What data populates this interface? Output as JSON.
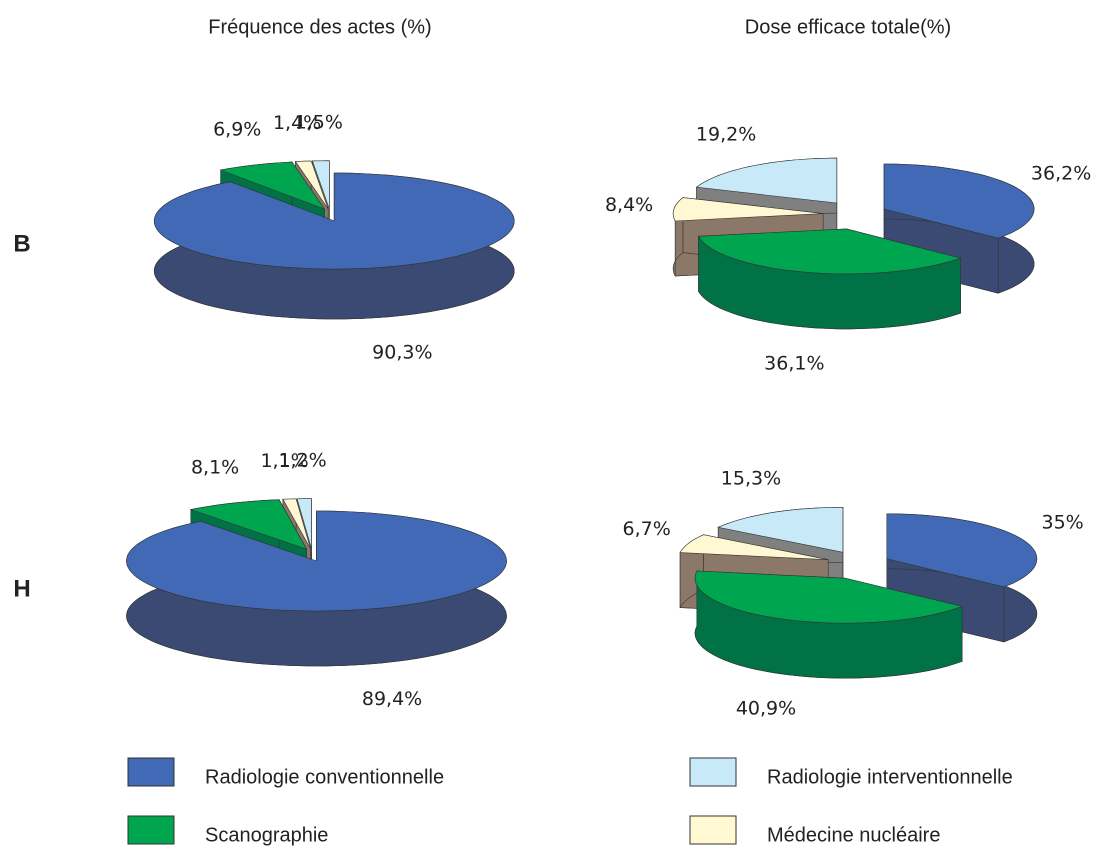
{
  "column_titles": [
    "Fréquence des actes (%)",
    "Dose efficace totale(%)"
  ],
  "row_labels": [
    "B",
    "H"
  ],
  "legend": {
    "categories": [
      "Radiologie conventionnelle",
      "Scanographie",
      "Médecine nucléaire",
      "Radiologie interventionnelle"
    ],
    "colors": [
      "#4169b5",
      "#00a550",
      "#fff8d2",
      "#c8e9f8"
    ],
    "side_colors": [
      "#3b4a72",
      "#007245",
      "#8c7868",
      "#808080"
    ]
  },
  "chart_data": [
    {
      "type": "pie",
      "values": [
        90.3,
        6.9,
        1.4,
        1.5
      ],
      "value_labels": [
        "90,3%",
        "6,9%",
        "1,4%",
        "1,5%"
      ]
    },
    {
      "type": "pie",
      "values": [
        36.2,
        36.1,
        8.4,
        19.2
      ],
      "value_labels": [
        "36,2%",
        "36,1%",
        "8,4%",
        "19,2%"
      ]
    },
    {
      "type": "pie",
      "values": [
        89.4,
        8.1,
        1.1,
        1.2
      ],
      "value_labels": [
        "89,4%",
        "8,1%",
        "1,1%",
        "1,2%"
      ]
    },
    {
      "type": "pie",
      "values": [
        35,
        40.9,
        6.7,
        15.3
      ],
      "value_labels": [
        "35%",
        "40,9%",
        "6,7%",
        "15,3%"
      ]
    }
  ]
}
